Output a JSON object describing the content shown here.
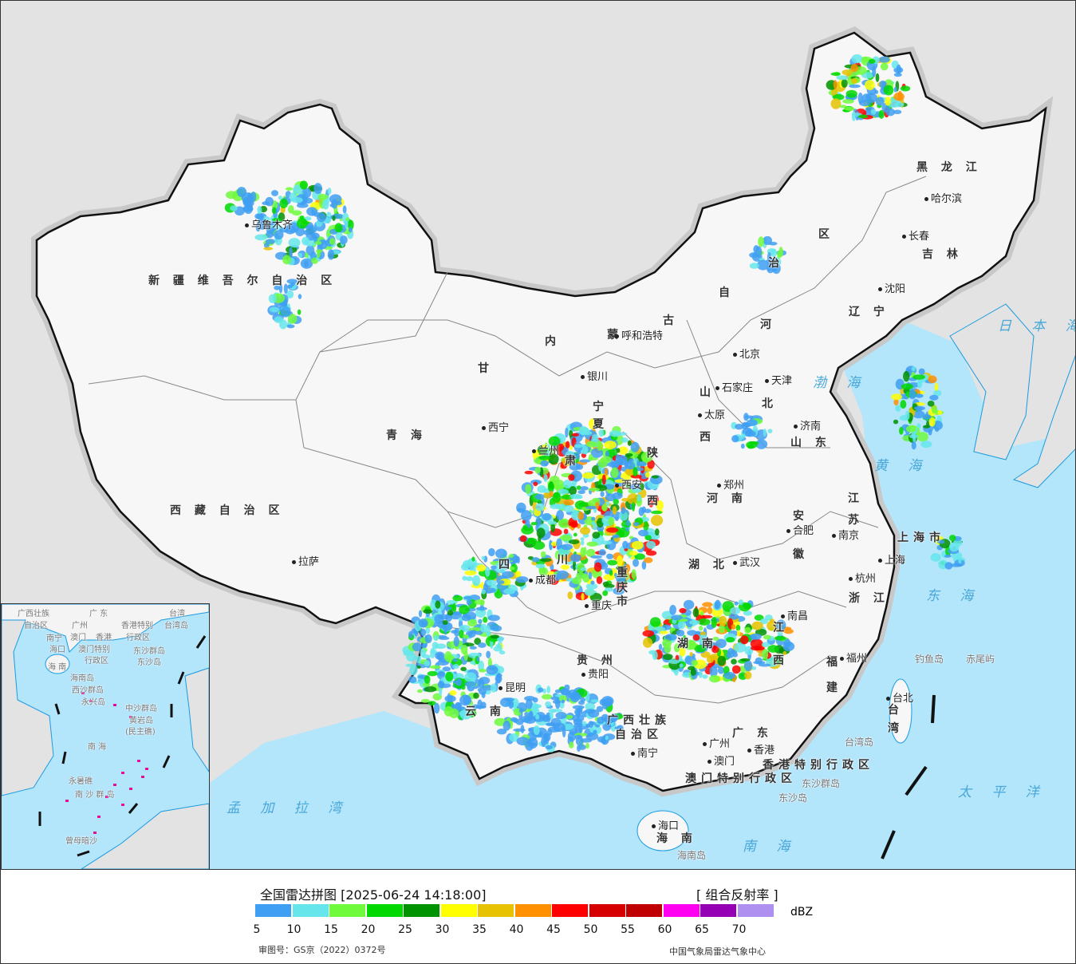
{
  "legend": {
    "title": "全国雷达拼图 [2025-06-24 14:18:00]",
    "product": "[ 组合反射率 ]",
    "unit": "dBZ",
    "colors": [
      "#3f9ff2",
      "#66e6eb",
      "#70fa3c",
      "#00d800",
      "#009200",
      "#ffff00",
      "#e6c200",
      "#ff9000",
      "#ff0000",
      "#d60000",
      "#c00000",
      "#ff00f0",
      "#9600b4",
      "#ad90f0"
    ],
    "ticks": [
      "5",
      "10",
      "15",
      "20",
      "25",
      "30",
      "35",
      "40",
      "45",
      "50",
      "55",
      "60",
      "65",
      "70"
    ],
    "approval": "审图号：GS京（2022）0372号",
    "issuer": "中国气象局雷达气象中心"
  },
  "map": {
    "provinces": [
      "新 疆 维 吾 尔 自 治 区",
      "西 藏 自 治 区",
      "青 海",
      "甘",
      "肃",
      "内",
      "蒙",
      "古",
      "自",
      "治",
      "区",
      "黑 龙 江",
      "吉 林",
      "辽 宁",
      "河",
      "北",
      "山",
      "西",
      "山 东",
      "陕",
      "西",
      "河 南",
      "江",
      "苏",
      "安",
      "徽",
      "四",
      "川",
      "重",
      "庆",
      "市",
      "湖 北",
      "湖 南",
      "江",
      "西",
      "浙 江",
      "福",
      "建",
      "贵 州",
      "云 南",
      "广西壮族",
      "自治区",
      "广 东",
      "海 南",
      "台",
      "湾",
      "上海市",
      "香港特别行政区",
      "澳门特别行政区",
      "宁",
      "夏"
    ],
    "seas": [
      "渤 海",
      "黄 海",
      "东 海",
      "南 海",
      "日 本 海",
      "太 平 洋",
      "孟 加 拉 湾"
    ],
    "cities": [
      "乌鲁木齐",
      "拉萨",
      "西宁",
      "兰州",
      "银川",
      "呼和浩特",
      "北京",
      "天津",
      "石家庄",
      "太原",
      "济南",
      "郑州",
      "西安",
      "成都",
      "重庆",
      "武汉",
      "合肥",
      "南京",
      "上海",
      "杭州",
      "南昌",
      "福州",
      "贵阳",
      "昆明",
      "南宁",
      "广州",
      "澳门",
      "香港",
      "海口",
      "台北",
      "哈尔滨",
      "长春",
      "沈阳"
    ],
    "islands": [
      "钓鱼岛",
      "赤尾屿",
      "东沙群岛",
      "东沙岛",
      "台湾岛",
      "海南岛"
    ],
    "inset": [
      "广西壮族",
      "自治区",
      "南宁",
      "广 东",
      "广州",
      "澳门",
      "香港",
      "香港特别",
      "行政区",
      "澳门特别",
      "行政区",
      "台湾",
      "台湾岛",
      "东沙群岛",
      "东沙岛",
      "海口",
      "海 南",
      "海南岛",
      "西沙群岛",
      "永兴岛",
      "中沙群岛",
      "黄岩岛",
      "(民主礁)",
      "南 海",
      "永暑礁",
      "南 沙 群 岛",
      "曾母暗沙"
    ]
  }
}
